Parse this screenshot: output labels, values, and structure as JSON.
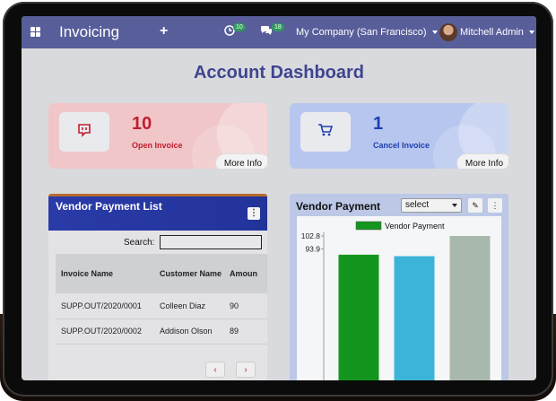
{
  "navbar": {
    "app_title": "Invoicing",
    "activity_count": "10",
    "message_count": "18",
    "company": "My Company (San Francisco)",
    "user": "Mitchell Admin"
  },
  "page_title": "Account Dashboard",
  "cards": {
    "open": {
      "count": "10",
      "label": "Open Invoice",
      "more": "More Info",
      "icon": "chat-bubble-icon"
    },
    "cancel": {
      "count": "1",
      "label": "Cancel Invoice",
      "more": "More Info",
      "icon": "cart-icon"
    }
  },
  "vendor_list": {
    "title": "Vendor Payment List",
    "search_label": "Search:",
    "search_value": "",
    "columns": [
      "Invoice Name",
      "Customer Name",
      "Amoun"
    ],
    "rows": [
      {
        "invoice": "SUPP.OUT/2020/0001",
        "customer": "Colleen Diaz",
        "amount": "90"
      },
      {
        "invoice": "SUPP.OUT/2020/0002",
        "customer": "Addison Olson",
        "amount": "89"
      }
    ],
    "prev": "‹",
    "next": "›"
  },
  "chart_panel": {
    "title": "Vendor Payment",
    "select_value": "select"
  },
  "chart_data": {
    "type": "bar",
    "categories": [
      "",
      "",
      ""
    ],
    "series": [
      {
        "name": "Vendor Payment",
        "values": [
          90,
          89,
          102.8
        ]
      }
    ],
    "bar_colors": [
      "#14961e",
      "#3cb4d9",
      "#a9b8ac"
    ],
    "y_ticks": [
      "102.8",
      "93.9"
    ],
    "ylim": [
      0,
      102.8
    ],
    "legend": "top"
  },
  "colors": {
    "navbar": "#575e9a",
    "title": "#3f458f",
    "danger": "#c01e2e",
    "primary": "#1e3fb0"
  }
}
